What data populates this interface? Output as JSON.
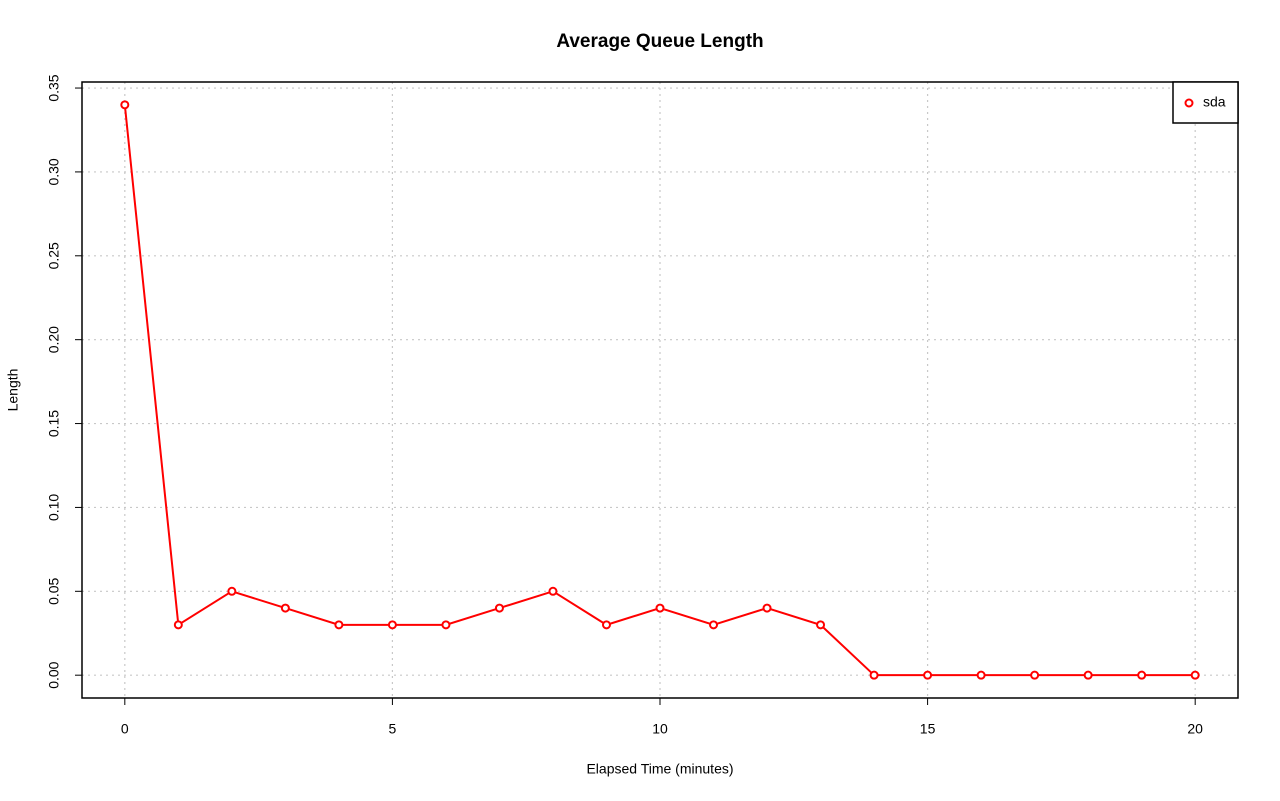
{
  "chart_data": {
    "type": "line",
    "title": "Average Queue Length",
    "xlabel": "Elapsed Time (minutes)",
    "ylabel": "Length",
    "x": [
      0,
      1,
      2,
      3,
      4,
      5,
      6,
      7,
      8,
      9,
      10,
      11,
      12,
      13,
      14,
      15,
      16,
      17,
      18,
      19,
      20
    ],
    "series": [
      {
        "name": "sda",
        "color": "#ff0000",
        "values": [
          0.34,
          0.03,
          0.05,
          0.04,
          0.03,
          0.03,
          0.03,
          0.04,
          0.05,
          0.03,
          0.04,
          0.03,
          0.04,
          0.03,
          0,
          0,
          0,
          0,
          0,
          0,
          0
        ]
      }
    ],
    "xlim": [
      -0.8,
      20.8
    ],
    "xticks": [
      0,
      5,
      10,
      15,
      20
    ],
    "ylim": [
      -0.0136,
      0.3536
    ],
    "yticks": [
      {
        "value": 0,
        "label": "0.00"
      },
      0.05,
      {
        "value": 0.1,
        "label": "0.10"
      },
      0.15,
      {
        "value": 0.2,
        "label": "0.20"
      },
      0.25,
      {
        "value": 0.3,
        "label": "0.30"
      },
      0.35
    ],
    "grid": true,
    "legend": "top-right"
  }
}
